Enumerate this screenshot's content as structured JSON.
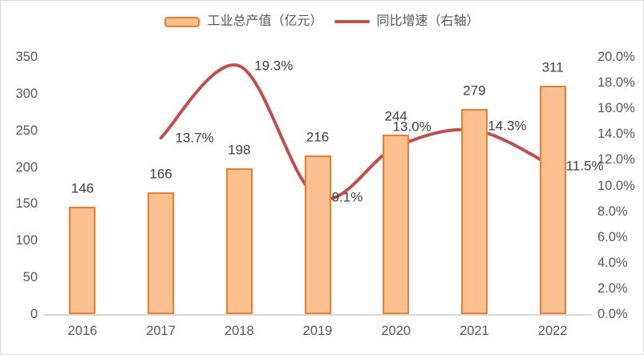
{
  "legend": {
    "bar_label": "工业总产值（亿元）",
    "line_label": "同比增速（右轴）"
  },
  "colors": {
    "bar_fill": "#FAC090",
    "bar_border": "#ED7D31",
    "line": "#C0504D",
    "axis_text": "#595959",
    "data_label_text": "#404040",
    "axis_line": "#D9D9D9"
  },
  "chart_data": {
    "type": "bar",
    "subtype": "bar+line-combo",
    "categories": [
      "2016",
      "2017",
      "2018",
      "2019",
      "2020",
      "2021",
      "2022"
    ],
    "series": [
      {
        "name": "工业总产值（亿元）",
        "type": "bar",
        "axis": "left",
        "values": [
          146,
          166,
          198,
          216,
          244,
          279,
          311
        ],
        "data_labels": [
          "146",
          "166",
          "198",
          "216",
          "244",
          "279",
          "311"
        ]
      },
      {
        "name": "同比增速（右轴）",
        "type": "line",
        "axis": "right",
        "values": [
          null,
          13.7,
          19.3,
          9.1,
          13.0,
          14.3,
          11.5
        ],
        "data_labels": [
          "",
          "13.7%",
          "19.3%",
          "9.1%",
          "13.0%",
          "14.3%",
          "11.5%"
        ]
      }
    ],
    "left_axis": {
      "min": 0,
      "max": 350,
      "step": 50,
      "ticks": [
        "0",
        "50",
        "100",
        "150",
        "200",
        "250",
        "300",
        "350"
      ]
    },
    "right_axis": {
      "min": 0,
      "max": 20,
      "step": 2,
      "ticks": [
        "0.0%",
        "2.0%",
        "4.0%",
        "6.0%",
        "8.0%",
        "10.0%",
        "12.0%",
        "14.0%",
        "16.0%",
        "18.0%",
        "20.0%"
      ]
    },
    "legend_position": "top",
    "grid": false,
    "smooth_line": true
  }
}
